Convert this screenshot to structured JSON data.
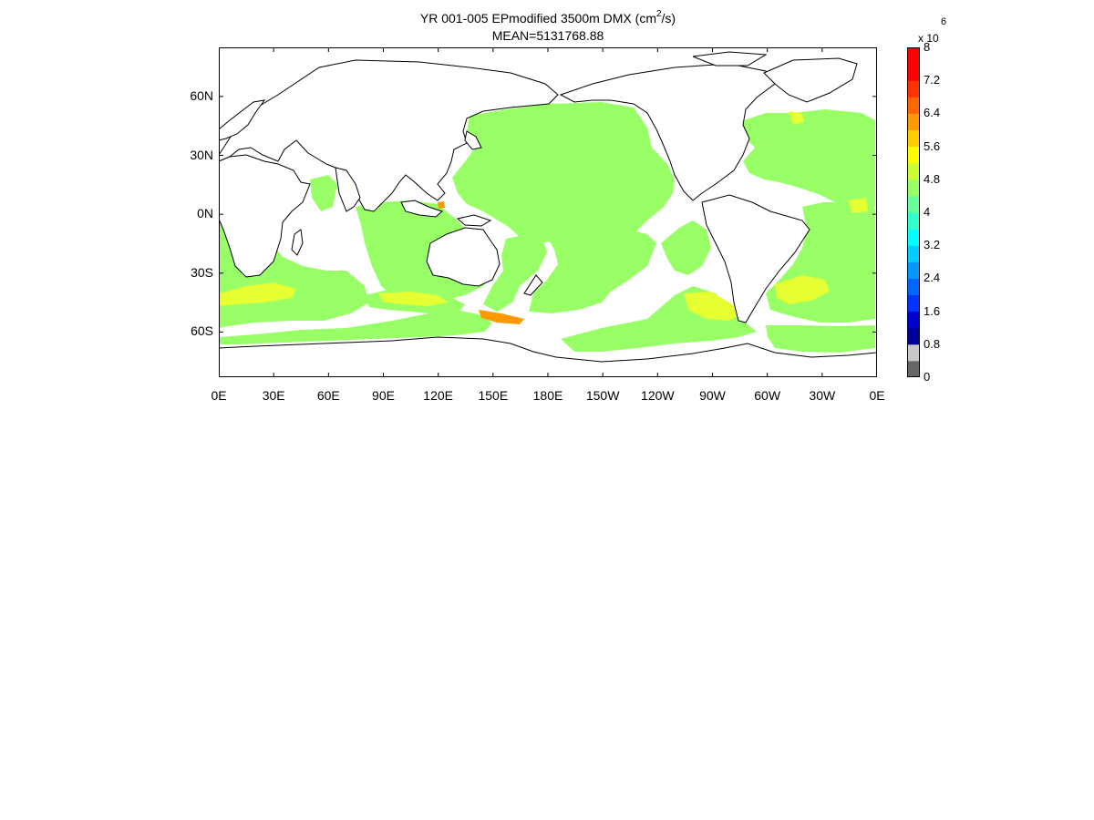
{
  "title": {
    "line1_prefix": "YR 001-005 EPmodified 3500m DMX (cm",
    "line1_sup": "2",
    "line1_suffix": "/s)",
    "line2": "MEAN=5131768.88"
  },
  "map": {
    "lon_ticks": [
      "0E",
      "30E",
      "60E",
      "90E",
      "120E",
      "150E",
      "180E",
      "150W",
      "120W",
      "90W",
      "60W",
      "30W",
      "0E"
    ],
    "lat_ticks": [
      "60N",
      "30N",
      "0N",
      "30S",
      "60S"
    ],
    "lat_tick_values": [
      60,
      30,
      0,
      -30,
      -60
    ],
    "lat_range": [
      -83,
      85
    ],
    "lon_range": [
      0,
      360
    ],
    "field_color_main": "#99ff66",
    "field_color_high": "#e6ff33",
    "field_color_peak": "#ff9900",
    "land_color": "#ffffff",
    "coast_color": "#000000"
  },
  "colorbar": {
    "multiplier": "x 10",
    "exponent": "6",
    "labels": [
      "8",
      "7.2",
      "6.4",
      "5.6",
      "4.8",
      "4",
      "3.2",
      "2.4",
      "1.6",
      "0.8",
      "0"
    ],
    "colors": [
      "#666666",
      "#c8c8c8",
      "#000099",
      "#0000cc",
      "#0033ff",
      "#0066ff",
      "#0099ff",
      "#00ccff",
      "#00ffff",
      "#33ffcc",
      "#66ff99",
      "#99ff66",
      "#ccff33",
      "#ffff00",
      "#ffcc00",
      "#ff9900",
      "#ff6600",
      "#ff3300",
      "#ff0000",
      "#ff0000"
    ]
  }
}
